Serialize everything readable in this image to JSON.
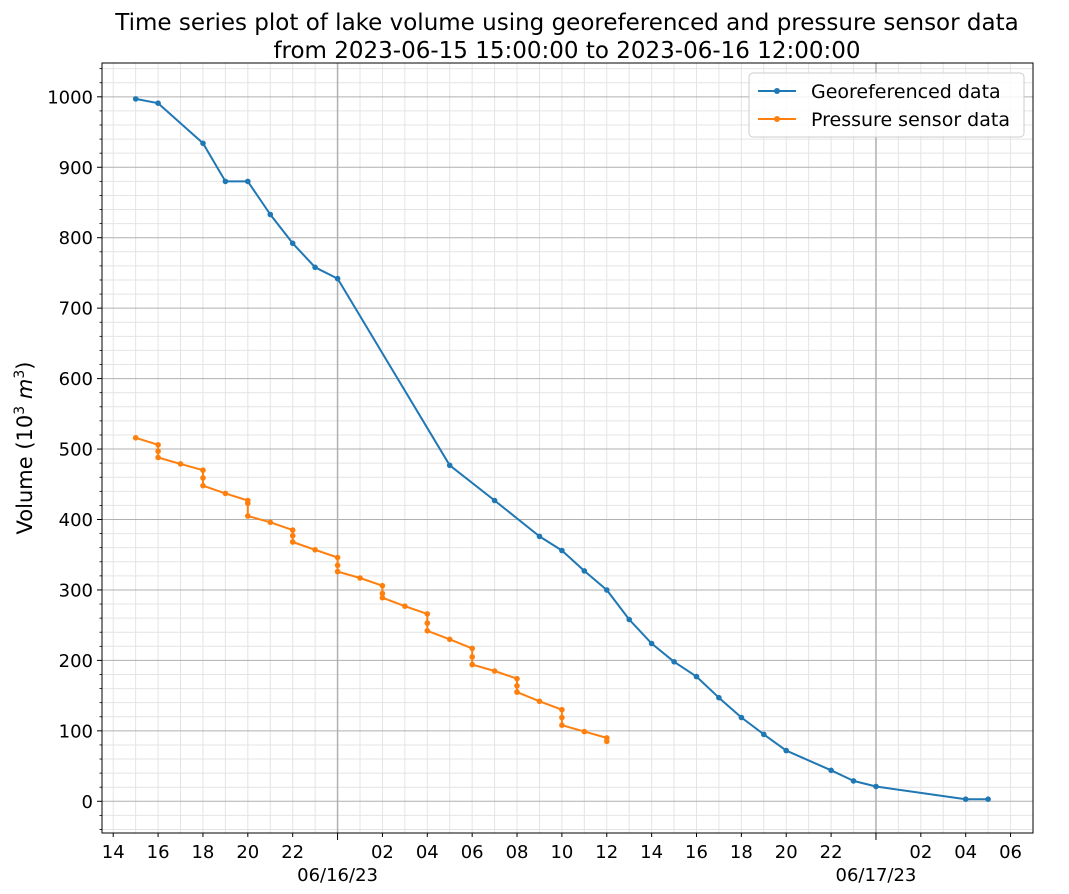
{
  "chart_data": {
    "type": "line",
    "title": "Time series plot of lake volume using georeferenced and pressure sensor data",
    "subtitle": "from 2023-06-15 15:00:00 to 2023-06-16 12:00:00",
    "ylabel_text": "Volume (",
    "ylabel_unit": "10",
    "ylabel_sup": "3",
    "ylabel_unit2": " m",
    "ylabel_sup2": "3",
    "ylabel_close": ")",
    "ylim": [
      -45,
      1048
    ],
    "xlim": [
      "2023-06-15 13:30",
      "2023-06-17 07:00"
    ],
    "y_ticks": [
      0,
      100,
      200,
      300,
      400,
      500,
      600,
      700,
      800,
      900,
      1000
    ],
    "x_ticks": [
      {
        "t": "2023-06-15 14:00",
        "label": "14"
      },
      {
        "t": "2023-06-15 16:00",
        "label": "16"
      },
      {
        "t": "2023-06-15 18:00",
        "label": "18"
      },
      {
        "t": "2023-06-15 20:00",
        "label": "20"
      },
      {
        "t": "2023-06-15 22:00",
        "label": "22"
      },
      {
        "t": "2023-06-16 02:00",
        "label": "02"
      },
      {
        "t": "2023-06-16 04:00",
        "label": "04"
      },
      {
        "t": "2023-06-16 06:00",
        "label": "06"
      },
      {
        "t": "2023-06-16 08:00",
        "label": "08"
      },
      {
        "t": "2023-06-16 10:00",
        "label": "10"
      },
      {
        "t": "2023-06-16 12:00",
        "label": "12"
      },
      {
        "t": "2023-06-16 14:00",
        "label": "14"
      },
      {
        "t": "2023-06-16 16:00",
        "label": "16"
      },
      {
        "t": "2023-06-16 18:00",
        "label": "18"
      },
      {
        "t": "2023-06-16 20:00",
        "label": "20"
      },
      {
        "t": "2023-06-16 22:00",
        "label": "22"
      },
      {
        "t": "2023-06-17 02:00",
        "label": "02"
      },
      {
        "t": "2023-06-17 04:00",
        "label": "04"
      },
      {
        "t": "2023-06-17 06:00",
        "label": "06"
      }
    ],
    "x_major_ticks": [
      {
        "t": "2023-06-16 00:00",
        "label": "06/16/23"
      },
      {
        "t": "2023-06-17 00:00",
        "label": "06/17/23"
      }
    ],
    "grid": true,
    "legend_position": "top-right",
    "series": [
      {
        "name": "Georeferenced data",
        "color": "#1f77b4",
        "x": [
          "2023-06-15 15:00",
          "2023-06-15 16:00",
          "2023-06-15 18:00",
          "2023-06-15 19:00",
          "2023-06-15 20:00",
          "2023-06-15 21:00",
          "2023-06-15 22:00",
          "2023-06-15 23:00",
          "2023-06-16 00:00",
          "2023-06-16 05:00",
          "2023-06-16 07:00",
          "2023-06-16 09:00",
          "2023-06-16 10:00",
          "2023-06-16 11:00",
          "2023-06-16 12:00",
          "2023-06-16 13:00",
          "2023-06-16 14:00",
          "2023-06-16 15:00",
          "2023-06-16 16:00",
          "2023-06-16 17:00",
          "2023-06-16 18:00",
          "2023-06-16 19:00",
          "2023-06-16 20:00",
          "2023-06-16 22:00",
          "2023-06-16 23:00",
          "2023-06-17 00:00",
          "2023-06-17 04:00",
          "2023-06-17 05:00"
        ],
        "y": [
          997,
          991,
          934,
          880,
          880,
          833,
          792,
          758,
          742,
          477,
          427,
          376,
          356,
          327,
          300,
          258,
          224,
          198,
          177,
          147,
          119,
          95,
          72,
          44,
          29,
          21,
          3,
          3
        ]
      },
      {
        "name": "Pressure sensor data",
        "color": "#ff7f0e",
        "x": [
          "2023-06-15 15:00",
          "2023-06-15 16:00",
          "2023-06-15 16:00",
          "2023-06-15 16:00",
          "2023-06-15 17:00",
          "2023-06-15 18:00",
          "2023-06-15 18:00",
          "2023-06-15 18:00",
          "2023-06-15 19:00",
          "2023-06-15 20:00",
          "2023-06-15 20:00",
          "2023-06-15 20:00",
          "2023-06-15 21:00",
          "2023-06-15 22:00",
          "2023-06-15 22:00",
          "2023-06-15 22:00",
          "2023-06-15 23:00",
          "2023-06-16 00:00",
          "2023-06-16 00:00",
          "2023-06-16 00:00",
          "2023-06-16 01:00",
          "2023-06-16 02:00",
          "2023-06-16 02:00",
          "2023-06-16 02:00",
          "2023-06-16 03:00",
          "2023-06-16 04:00",
          "2023-06-16 04:00",
          "2023-06-16 04:00",
          "2023-06-16 05:00",
          "2023-06-16 06:00",
          "2023-06-16 06:00",
          "2023-06-16 06:00",
          "2023-06-16 07:00",
          "2023-06-16 08:00",
          "2023-06-16 08:00",
          "2023-06-16 08:00",
          "2023-06-16 09:00",
          "2023-06-16 10:00",
          "2023-06-16 10:00",
          "2023-06-16 10:00",
          "2023-06-16 11:00",
          "2023-06-16 12:00",
          "2023-06-16 12:00"
        ],
        "y": [
          516,
          506,
          497,
          488,
          479,
          470,
          459,
          448,
          437,
          427,
          423,
          405,
          396,
          385,
          377,
          368,
          357,
          346,
          335,
          326,
          317,
          306,
          295,
          289,
          277,
          266,
          253,
          242,
          230,
          217,
          205,
          194,
          185,
          174,
          164,
          155,
          142,
          130,
          119,
          108,
          99,
          90,
          85
        ]
      }
    ]
  }
}
